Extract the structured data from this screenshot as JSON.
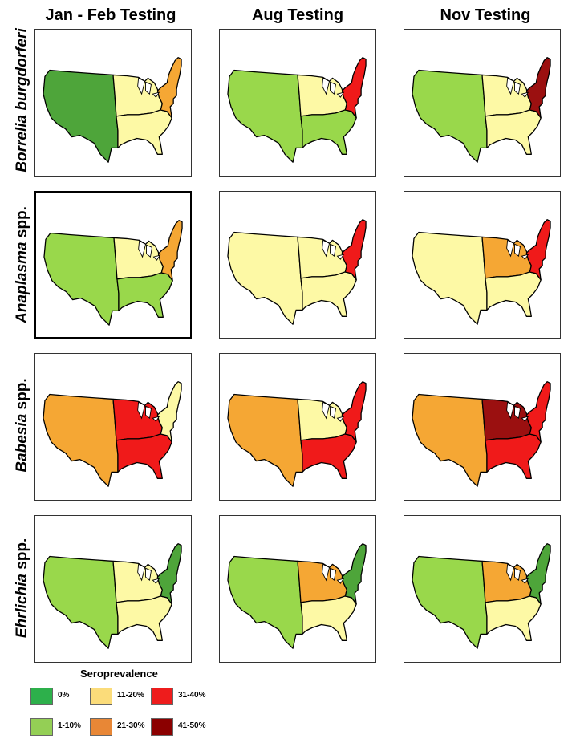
{
  "columns": [
    "Jan - Feb Testing",
    "Aug Testing",
    "Nov Testing"
  ],
  "rows": [
    {
      "pre": "Borrelia burgdorferi",
      "post": ""
    },
    {
      "pre": "Anaplasma",
      "post": " spp."
    },
    {
      "pre": "Babesia",
      "post": " spp."
    },
    {
      "pre": "Ehrlichia",
      "post": " spp."
    }
  ],
  "legend": {
    "title": "Seroprevalence",
    "items": [
      {
        "label": "0%",
        "color": "#2db04b"
      },
      {
        "label": "1-10%",
        "color": "#94cf55"
      },
      {
        "label": "11-20%",
        "color": "#fbdc7a"
      },
      {
        "label": "21-30%",
        "color": "#e88736"
      },
      {
        "label": "31-40%",
        "color": "#ee1c1c"
      },
      {
        "label": "41-50%",
        "color": "#8b0000"
      }
    ]
  },
  "map_colors": {
    "green_dark": "#4ea53a",
    "green_light": "#99d84b",
    "yellow_light": "#fdf9a5",
    "orange": "#f5a734",
    "red": "#f01a1a",
    "dark_red": "#9b1010"
  },
  "maps": [
    {
      "row": 0,
      "col": 0,
      "west": "green_dark",
      "midwest": "yellow_light",
      "south": "yellow_light",
      "northeast": "orange"
    },
    {
      "row": 0,
      "col": 1,
      "west": "green_light",
      "midwest": "yellow_light",
      "south": "green_light",
      "northeast": "red"
    },
    {
      "row": 0,
      "col": 2,
      "west": "green_light",
      "midwest": "yellow_light",
      "south": "yellow_light",
      "northeast": "dark_red"
    },
    {
      "row": 1,
      "col": 0,
      "west": "green_light",
      "midwest": "yellow_light",
      "south": "green_light",
      "northeast": "orange"
    },
    {
      "row": 1,
      "col": 1,
      "west": "yellow_light",
      "midwest": "yellow_light",
      "south": "yellow_light",
      "northeast": "red"
    },
    {
      "row": 1,
      "col": 2,
      "west": "yellow_light",
      "midwest": "orange",
      "south": "yellow_light",
      "northeast": "red"
    },
    {
      "row": 2,
      "col": 0,
      "west": "orange",
      "midwest": "red",
      "south": "red",
      "northeast": "yellow_light"
    },
    {
      "row": 2,
      "col": 1,
      "west": "orange",
      "midwest": "yellow_light",
      "south": "red",
      "northeast": "red"
    },
    {
      "row": 2,
      "col": 2,
      "west": "orange",
      "midwest": "dark_red",
      "south": "red",
      "northeast": "red"
    },
    {
      "row": 3,
      "col": 0,
      "west": "green_light",
      "midwest": "yellow_light",
      "south": "yellow_light",
      "northeast": "green_dark"
    },
    {
      "row": 3,
      "col": 1,
      "west": "green_light",
      "midwest": "orange",
      "south": "yellow_light",
      "northeast": "green_dark"
    },
    {
      "row": 3,
      "col": 2,
      "west": "green_light",
      "midwest": "orange",
      "south": "yellow_light",
      "northeast": "green_dark"
    }
  ]
}
